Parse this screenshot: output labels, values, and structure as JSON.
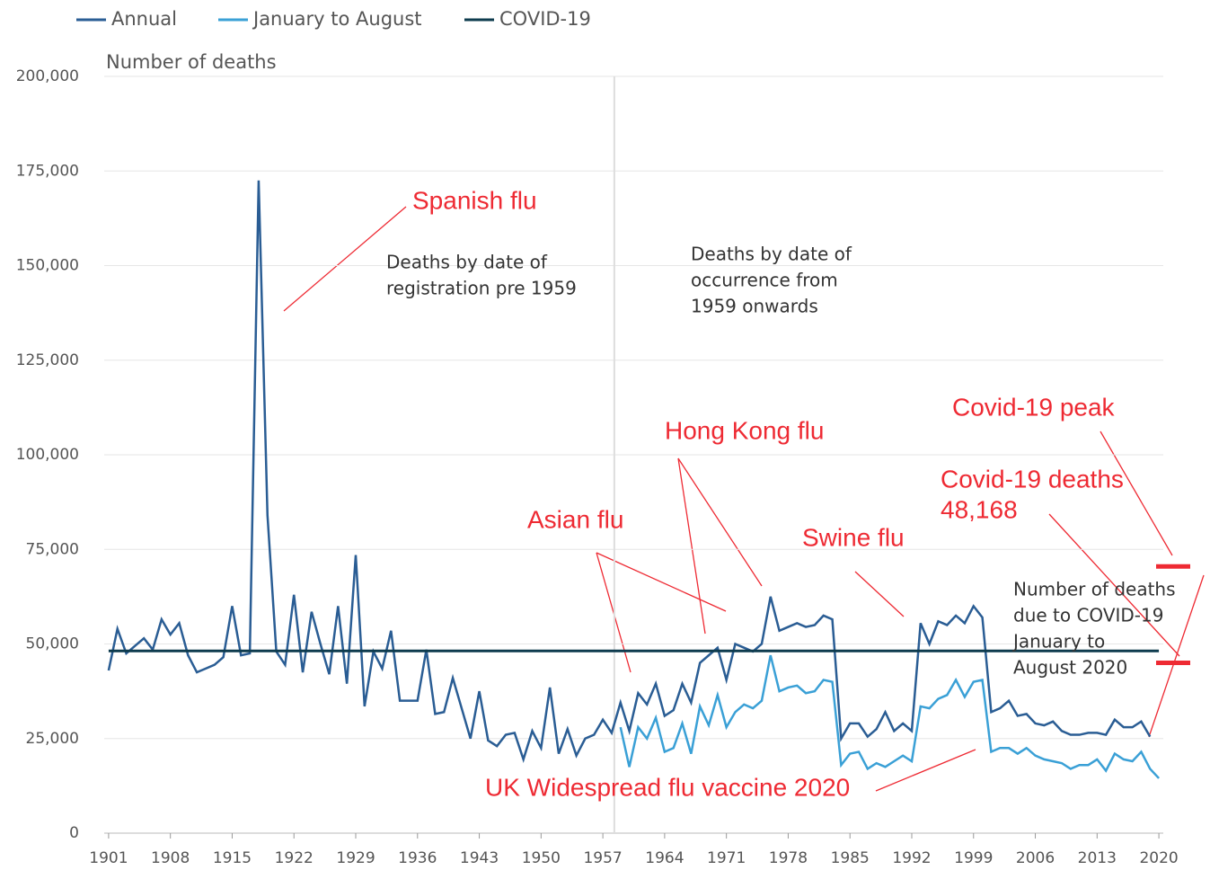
{
  "chart_data": {
    "type": "line",
    "y_label": "Number of deaths",
    "x": [
      1901,
      1902,
      1903,
      1904,
      1905,
      1906,
      1907,
      1908,
      1909,
      1910,
      1911,
      1912,
      1913,
      1914,
      1915,
      1916,
      1917,
      1918,
      1919,
      1920,
      1921,
      1922,
      1923,
      1924,
      1925,
      1926,
      1927,
      1928,
      1929,
      1930,
      1931,
      1932,
      1933,
      1934,
      1935,
      1936,
      1937,
      1938,
      1939,
      1940,
      1941,
      1942,
      1943,
      1944,
      1945,
      1946,
      1947,
      1948,
      1949,
      1950,
      1951,
      1952,
      1953,
      1954,
      1955,
      1956,
      1957,
      1958,
      1959,
      1960,
      1961,
      1962,
      1963,
      1964,
      1965,
      1966,
      1967,
      1968,
      1969,
      1970,
      1971,
      1972,
      1973,
      1974,
      1975,
      1976,
      1977,
      1978,
      1979,
      1980,
      1981,
      1982,
      1983,
      1984,
      1985,
      1986,
      1987,
      1988,
      1989,
      1990,
      1991,
      1992,
      1993,
      1994,
      1995,
      1996,
      1997,
      1998,
      1999,
      2000,
      2001,
      2002,
      2003,
      2004,
      2005,
      2006,
      2007,
      2008,
      2009,
      2010,
      2011,
      2012,
      2013,
      2014,
      2015,
      2016,
      2017,
      2018,
      2019,
      2020
    ],
    "series": [
      {
        "name": "Annual",
        "color": "#2a5d94",
        "values": [
          43000,
          54000,
          47500,
          49500,
          51500,
          48500,
          56500,
          52500,
          55500,
          47000,
          42500,
          43500,
          44500,
          46500,
          60000,
          47000,
          47500,
          172500,
          84000,
          48000,
          44500,
          63000,
          42500,
          58500,
          50000,
          42000,
          60000,
          39500,
          73500,
          33500,
          48000,
          43500,
          53500,
          35000,
          35000,
          35000,
          48500,
          31500,
          32000,
          41000,
          33000,
          25000,
          37500,
          24500,
          23000,
          26000,
          26500,
          19500,
          27000,
          22500,
          38500,
          21000,
          27500,
          20500,
          25000,
          26000,
          30000,
          26500,
          34500,
          27000,
          37000,
          34000,
          39500,
          31000,
          32500,
          39500,
          34500,
          45000,
          47000,
          49000,
          40500,
          50000,
          49000,
          48000,
          50000,
          62500,
          53500,
          54500,
          55500,
          54500,
          55000,
          57500,
          56500,
          25000,
          29000,
          29000,
          25500,
          27500,
          32000,
          27000,
          29000,
          27000,
          55500,
          50000,
          56000,
          55000,
          57500,
          55500,
          60000,
          57000,
          32000,
          33000,
          35000,
          31000,
          31500,
          29000,
          28500,
          29500,
          27000,
          26000,
          26000,
          26500,
          26500,
          26000,
          30000,
          28000,
          28000,
          29500,
          25500,
          null
        ]
      },
      {
        "name": "January to August",
        "color": "#3aa0d6",
        "values": [
          null,
          null,
          null,
          null,
          null,
          null,
          null,
          null,
          null,
          null,
          null,
          null,
          null,
          null,
          null,
          null,
          null,
          null,
          null,
          null,
          null,
          null,
          null,
          null,
          null,
          null,
          null,
          null,
          null,
          null,
          null,
          null,
          null,
          null,
          null,
          null,
          null,
          null,
          null,
          null,
          null,
          null,
          null,
          null,
          null,
          null,
          null,
          null,
          null,
          null,
          null,
          null,
          null,
          null,
          null,
          null,
          null,
          null,
          28000,
          17500,
          28000,
          25000,
          30500,
          21500,
          22500,
          29000,
          21000,
          33500,
          28500,
          36500,
          28000,
          32000,
          34000,
          33000,
          35000,
          47000,
          37500,
          38500,
          39000,
          37000,
          37500,
          40500,
          40000,
          18000,
          21000,
          21500,
          17000,
          18500,
          17500,
          19000,
          20500,
          19000,
          33500,
          33000,
          35500,
          36500,
          40500,
          36000,
          40000,
          40500,
          21500,
          22500,
          22500,
          21000,
          22500,
          20500,
          19500,
          19000,
          18500,
          17000,
          18000,
          18000,
          19500,
          16500,
          21000,
          19500,
          19000,
          21500,
          17000,
          14500
        ]
      }
    ],
    "reference_line": {
      "name": "COVID-19",
      "color": "#0e3b4e",
      "value": 48168
    },
    "divider_x": 1958.3,
    "red_markers": [
      70500,
      45000
    ],
    "xlim": [
      1900.5,
      2020.5
    ],
    "ylim": [
      0,
      200000
    ],
    "xticks": [
      1901,
      1908,
      1915,
      1922,
      1929,
      1936,
      1943,
      1950,
      1957,
      1964,
      1971,
      1978,
      1985,
      1992,
      1999,
      2006,
      2013,
      2020
    ],
    "yticks": [
      0,
      {
        "value": 25000,
        "label": "25,000"
      },
      {
        "value": 50000,
        "label": "50,000"
      },
      {
        "value": 75000,
        "label": "75,000"
      },
      {
        "value": 100000,
        "label": "100,000"
      },
      {
        "value": 125000,
        "label": "125,000"
      },
      {
        "value": 150000,
        "label": "150,000"
      },
      {
        "value": 175000,
        "label": "175,000"
      },
      {
        "value": 200000,
        "label": "200,000"
      }
    ],
    "grid": true,
    "notes": [
      [
        "Deaths by date of",
        "registration pre 1959"
      ],
      [
        "Deaths by date of",
        "occurrence from",
        "1959 onwards"
      ],
      [
        "Number of deaths",
        "due to COVID-19",
        "January to",
        "August 2020"
      ]
    ],
    "annotations": [
      [
        "Spanish flu"
      ],
      [
        "Asian flu"
      ],
      [
        "Hong Kong flu"
      ],
      [
        "Swine flu"
      ],
      [
        "Covid-19 peak"
      ],
      [
        "Covid-19 deaths",
        "48,168"
      ],
      [
        "UK Widespread flu vaccine 2020"
      ]
    ]
  }
}
